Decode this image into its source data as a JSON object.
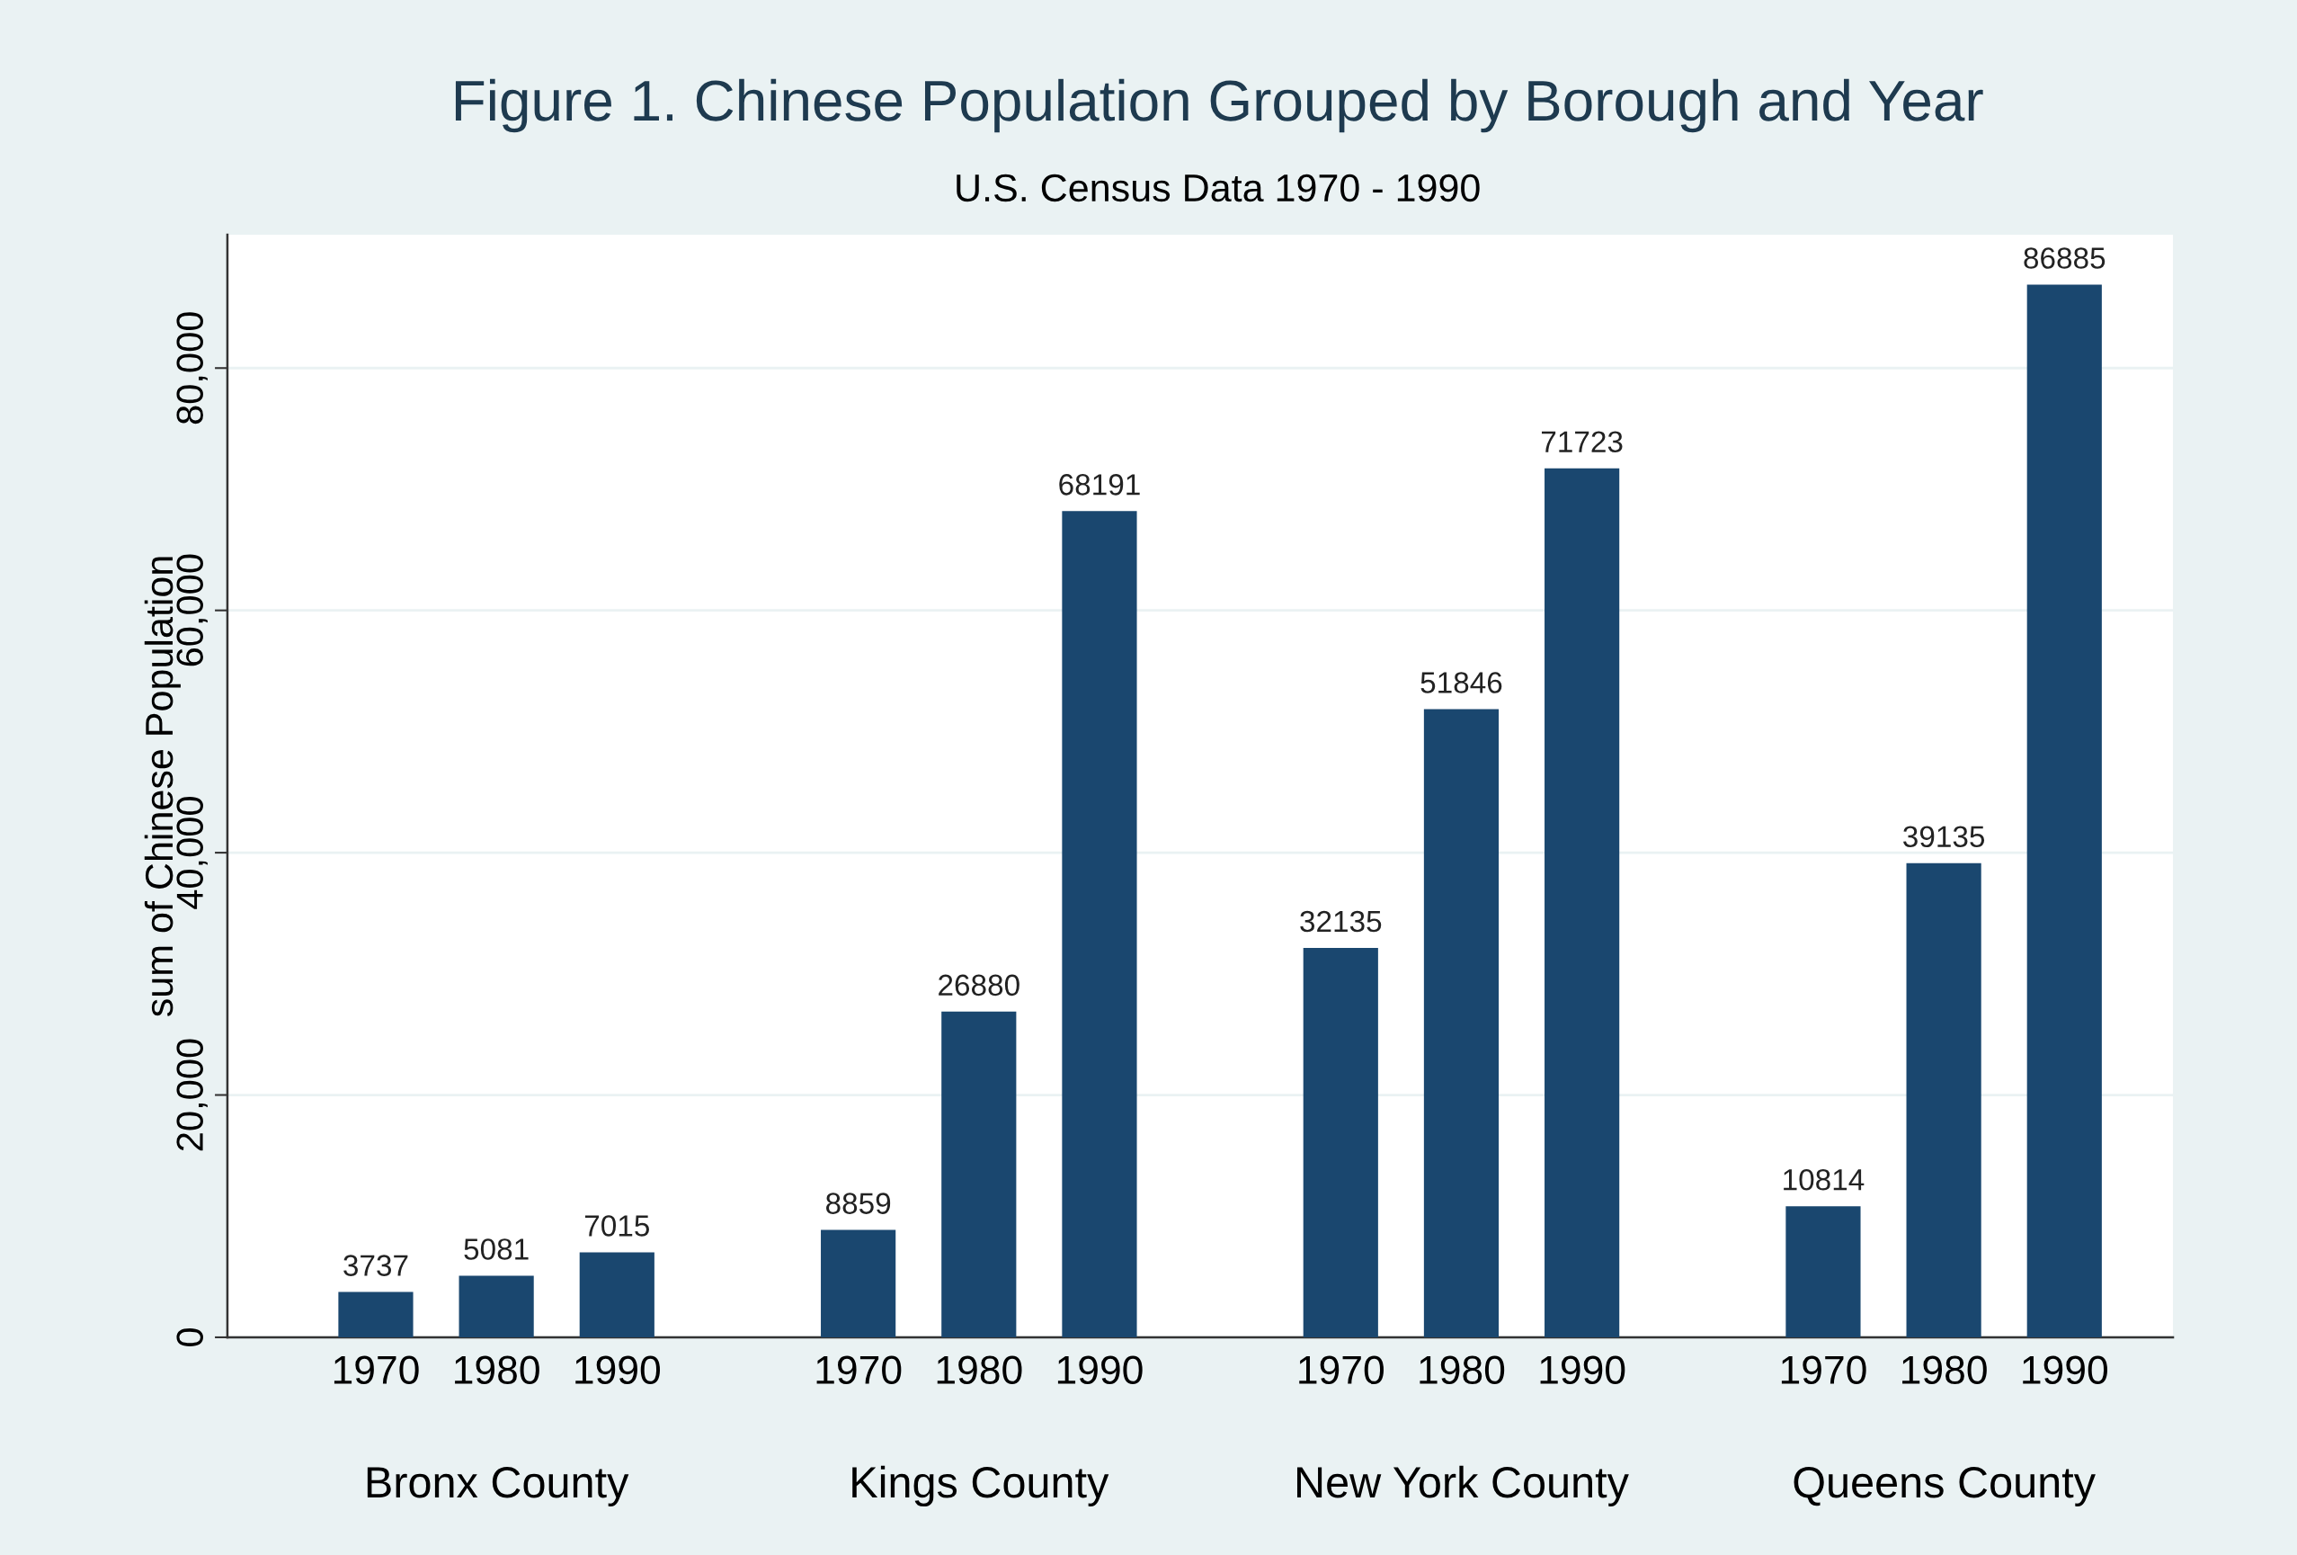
{
  "chart_data": {
    "type": "bar",
    "title": "Figure 1. Chinese Population Grouped by Borough and Year",
    "subtitle": "U.S. Census Data 1970 - 1990",
    "ylabel": "sum of Chinese Population",
    "categories": [
      "1970",
      "1980",
      "1990",
      null,
      "1970",
      "1980",
      "1990",
      null,
      "1970",
      "1980",
      "1990",
      null,
      "1970",
      "1980",
      "1990"
    ],
    "values": [
      3737,
      5081,
      7015,
      null,
      8859,
      26880,
      68191,
      null,
      32135,
      51846,
      71723,
      null,
      10814,
      39135,
      86885
    ],
    "color": "#1a476f",
    "annotations": [
      "Bronx County",
      "Kings County",
      "New York County",
      "Queens County"
    ],
    "ylim": [
      0,
      91000
    ],
    "yticks": [
      0,
      {
        "value": 20000,
        "label": "20,000"
      },
      {
        "value": 40000,
        "label": "40,000"
      },
      {
        "value": 60000,
        "label": "60,000"
      },
      {
        "value": 80000,
        "label": "80,000"
      }
    ],
    "grid": "y",
    "data_labels": true
  }
}
